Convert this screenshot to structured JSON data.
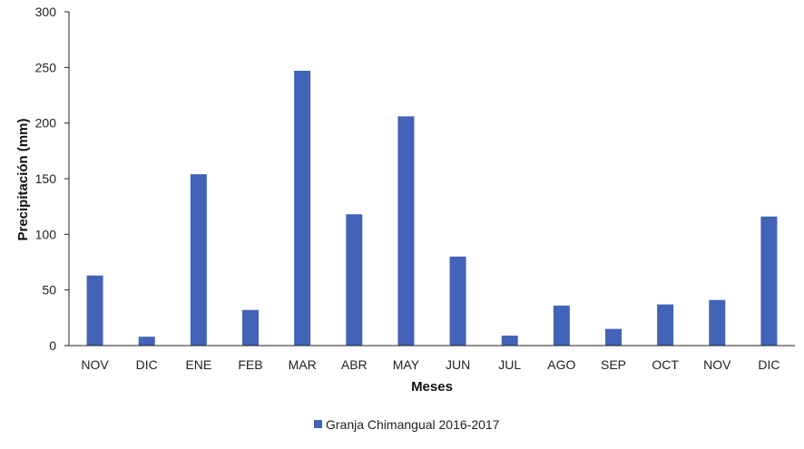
{
  "chart_data": {
    "type": "bar",
    "title": "",
    "xlabel": "Meses",
    "ylabel": "Precipitación (mm)",
    "ylim": [
      0,
      300
    ],
    "yticks": [
      0,
      50,
      100,
      150,
      200,
      250,
      300
    ],
    "categories": [
      "NOV",
      "DIC",
      "ENE",
      "FEB",
      "MAR",
      "ABR",
      "MAY",
      "JUN",
      "JUL",
      "AGO",
      "SEP",
      "OCT",
      "NOV",
      "DIC"
    ],
    "series": [
      {
        "name": "Granja Chimangual 2016-2017",
        "color": "#4263B8",
        "values": [
          63,
          8,
          154,
          32,
          247,
          118,
          206,
          80,
          9,
          36,
          15,
          37,
          41,
          116
        ]
      }
    ],
    "grid": false,
    "legend_position": "bottom"
  }
}
